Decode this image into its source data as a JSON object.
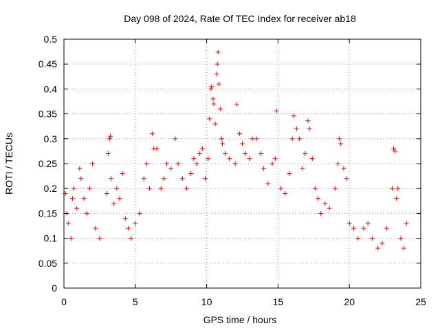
{
  "chart_data": {
    "type": "scatter",
    "title": "Day 098 of 2024, Rate Of TEC Index for receiver ab18",
    "xlabel": "GPS time / hours",
    "ylabel": "ROTI / TECUs",
    "xlim": [
      0,
      25
    ],
    "ylim": [
      0,
      0.5
    ],
    "xticks": [
      0,
      5,
      10,
      15,
      20,
      25
    ],
    "xtick_labels": [
      "0",
      "5",
      "10",
      "15",
      "20",
      "25"
    ],
    "yticks": [
      0,
      0.05,
      0.1,
      0.15,
      0.2,
      0.25,
      0.3,
      0.35,
      0.4,
      0.45,
      0.5
    ],
    "ytick_labels": [
      "0",
      "0.05",
      "0.1",
      "0.15",
      "0.2",
      "0.25",
      "0.3",
      "0.35",
      "0.4",
      "0.45",
      "0.5"
    ],
    "grid": true,
    "marker": "+",
    "marker_color": "#ff0000",
    "series": [
      {
        "points": [
          [
            0.1,
            0.19
          ],
          [
            0.2,
            0.15
          ],
          [
            0.3,
            0.13
          ],
          [
            0.5,
            0.1
          ],
          [
            0.6,
            0.18
          ],
          [
            0.7,
            0.2
          ],
          [
            0.9,
            0.16
          ],
          [
            1.1,
            0.24
          ],
          [
            1.2,
            0.22
          ],
          [
            1.4,
            0.18
          ],
          [
            1.6,
            0.15
          ],
          [
            1.8,
            0.2
          ],
          [
            2.0,
            0.25
          ],
          [
            2.2,
            0.12
          ],
          [
            2.5,
            0.1
          ],
          [
            3.0,
            0.19
          ],
          [
            3.1,
            0.27
          ],
          [
            3.2,
            0.3
          ],
          [
            3.25,
            0.305
          ],
          [
            3.3,
            0.22
          ],
          [
            3.5,
            0.17
          ],
          [
            3.7,
            0.2
          ],
          [
            3.9,
            0.18
          ],
          [
            4.1,
            0.23
          ],
          [
            4.3,
            0.14
          ],
          [
            4.5,
            0.12
          ],
          [
            4.7,
            0.1
          ],
          [
            5.0,
            0.13
          ],
          [
            5.3,
            0.15
          ],
          [
            5.6,
            0.22
          ],
          [
            5.8,
            0.25
          ],
          [
            6.0,
            0.2
          ],
          [
            6.2,
            0.31
          ],
          [
            6.3,
            0.28
          ],
          [
            6.5,
            0.28
          ],
          [
            6.8,
            0.2
          ],
          [
            7.0,
            0.22
          ],
          [
            7.2,
            0.25
          ],
          [
            7.5,
            0.24
          ],
          [
            7.8,
            0.3
          ],
          [
            8.0,
            0.25
          ],
          [
            8.3,
            0.22
          ],
          [
            8.6,
            0.2
          ],
          [
            8.9,
            0.23
          ],
          [
            9.1,
            0.26
          ],
          [
            9.3,
            0.25
          ],
          [
            9.5,
            0.27
          ],
          [
            9.7,
            0.28
          ],
          [
            9.9,
            0.22
          ],
          [
            10.1,
            0.26
          ],
          [
            10.2,
            0.34
          ],
          [
            10.3,
            0.4
          ],
          [
            10.35,
            0.405
          ],
          [
            10.45,
            0.38
          ],
          [
            10.5,
            0.37
          ],
          [
            10.6,
            0.33
          ],
          [
            10.7,
            0.43
          ],
          [
            10.75,
            0.45
          ],
          [
            10.8,
            0.474
          ],
          [
            10.85,
            0.41
          ],
          [
            10.95,
            0.36
          ],
          [
            11.05,
            0.3
          ],
          [
            11.1,
            0.29
          ],
          [
            11.3,
            0.27
          ],
          [
            11.6,
            0.26
          ],
          [
            12.0,
            0.25
          ],
          [
            12.1,
            0.369
          ],
          [
            12.3,
            0.31
          ],
          [
            12.5,
            0.29
          ],
          [
            12.7,
            0.27
          ],
          [
            13.0,
            0.26
          ],
          [
            13.2,
            0.3
          ],
          [
            13.5,
            0.3
          ],
          [
            13.8,
            0.27
          ],
          [
            14.0,
            0.24
          ],
          [
            14.3,
            0.21
          ],
          [
            14.6,
            0.25
          ],
          [
            14.8,
            0.26
          ],
          [
            14.9,
            0.356
          ],
          [
            15.2,
            0.2
          ],
          [
            15.5,
            0.19
          ],
          [
            15.8,
            0.23
          ],
          [
            16.0,
            0.3
          ],
          [
            16.1,
            0.346
          ],
          [
            16.3,
            0.32
          ],
          [
            16.5,
            0.3
          ],
          [
            16.7,
            0.24
          ],
          [
            16.9,
            0.27
          ],
          [
            17.1,
            0.336
          ],
          [
            17.2,
            0.32
          ],
          [
            17.4,
            0.26
          ],
          [
            17.6,
            0.2
          ],
          [
            17.8,
            0.18
          ],
          [
            18.0,
            0.15
          ],
          [
            18.3,
            0.17
          ],
          [
            18.6,
            0.16
          ],
          [
            19.0,
            0.2
          ],
          [
            19.2,
            0.25
          ],
          [
            19.3,
            0.3
          ],
          [
            19.4,
            0.29
          ],
          [
            19.6,
            0.24
          ],
          [
            19.8,
            0.22
          ],
          [
            20.0,
            0.13
          ],
          [
            20.3,
            0.12
          ],
          [
            20.6,
            0.1
          ],
          [
            21.0,
            0.12
          ],
          [
            21.3,
            0.13
          ],
          [
            21.6,
            0.1
          ],
          [
            22.0,
            0.08
          ],
          [
            22.3,
            0.09
          ],
          [
            22.6,
            0.12
          ],
          [
            23.0,
            0.2
          ],
          [
            23.1,
            0.28
          ],
          [
            23.2,
            0.275
          ],
          [
            23.3,
            0.18
          ],
          [
            23.4,
            0.2
          ],
          [
            23.6,
            0.1
          ],
          [
            23.8,
            0.08
          ],
          [
            24.0,
            0.13
          ]
        ]
      }
    ]
  }
}
